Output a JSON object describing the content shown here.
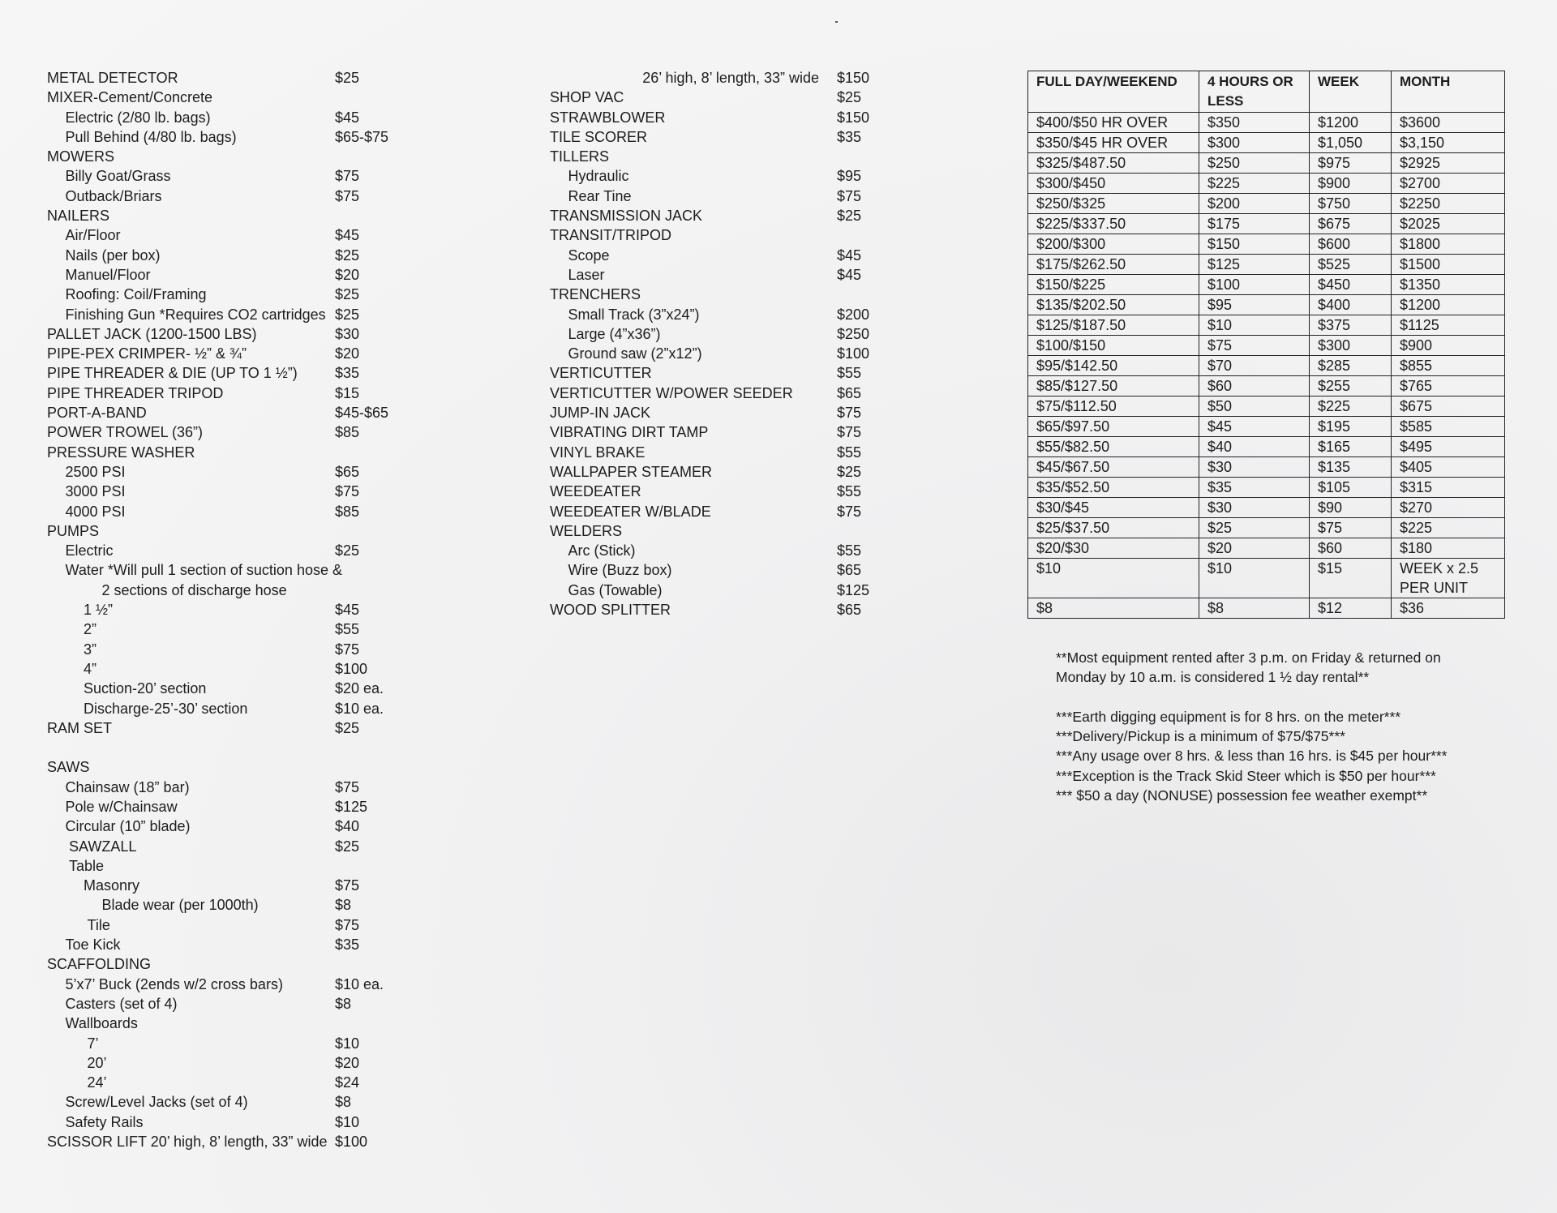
{
  "left_column": [
    {
      "name": "METAL DETECTOR",
      "price": "$25",
      "level": 0
    },
    {
      "name": "MIXER-Cement/Concrete",
      "price": "",
      "level": 0
    },
    {
      "name": "Electric (2/80 lb. bags)",
      "price": "$45",
      "level": 1
    },
    {
      "name": "Pull Behind (4/80 lb. bags)",
      "price": "$65-$75",
      "level": 1
    },
    {
      "name": "MOWERS",
      "price": "",
      "level": 0
    },
    {
      "name": "Billy Goat/Grass",
      "price": "$75",
      "level": 1
    },
    {
      "name": "Outback/Briars",
      "price": "$75",
      "level": 1
    },
    {
      "name": "NAILERS",
      "price": "",
      "level": 0
    },
    {
      "name": "Air/Floor",
      "price": "$45",
      "level": 1
    },
    {
      "name": "Nails (per box)",
      "price": "$25",
      "level": 1
    },
    {
      "name": "Manuel/Floor",
      "price": "$20",
      "level": 1
    },
    {
      "name": "Roofing: Coil/Framing",
      "price": "$25",
      "level": 1
    },
    {
      "name": "Finishing Gun *Requires CO2 cartridges",
      "price": "$25",
      "level": 1
    },
    {
      "name": "PALLET JACK (1200-1500 LBS)",
      "price": "$30",
      "level": 0
    },
    {
      "name": "PIPE-PEX CRIMPER- ½” & ¾”",
      "price": "$20",
      "level": 0
    },
    {
      "name": "PIPE THREADER & DIE (UP TO 1 ½”)",
      "price": "$35",
      "level": 0
    },
    {
      "name": "PIPE THREADER TRIPOD",
      "price": "$15",
      "level": 0
    },
    {
      "name": "PORT-A-BAND",
      "price": "$45-$65",
      "level": 0
    },
    {
      "name": "POWER TROWEL (36”)",
      "price": "$85",
      "level": 0
    },
    {
      "name": "PRESSURE WASHER",
      "price": "",
      "level": 0
    },
    {
      "name": "2500 PSI",
      "price": "$65",
      "level": 1
    },
    {
      "name": "3000 PSI",
      "price": "$75",
      "level": 1
    },
    {
      "name": "4000 PSI",
      "price": "$85",
      "level": 1
    },
    {
      "name": "PUMPS",
      "price": "",
      "level": 0
    },
    {
      "name": "Electric",
      "price": "$25",
      "level": 1
    },
    {
      "name": "Water *Will pull 1 section of suction hose &",
      "price": "",
      "level": 1
    },
    {
      "name": "2 sections of discharge hose",
      "price": "",
      "level": 3
    },
    {
      "name": "1 ½”",
      "price": "$45",
      "level": 2
    },
    {
      "name": "2”",
      "price": "$55",
      "level": 2
    },
    {
      "name": "3”",
      "price": "$75",
      "level": 2
    },
    {
      "name": "4”",
      "price": "$100",
      "level": 2
    },
    {
      "name": "Suction-20’ section",
      "price": "$20 ea.",
      "level": 2
    },
    {
      "name": "Discharge-25’-30’ section",
      "price": "$10 ea.",
      "level": 2
    },
    {
      "name": "RAM SET",
      "price": "$25",
      "level": 0
    },
    {
      "name": "",
      "price": "",
      "level": 0
    },
    {
      "name": "SAWS",
      "price": "",
      "level": 0
    },
    {
      "name": "Chainsaw (18” bar)",
      "price": "$75",
      "level": 1
    },
    {
      "name": "Pole w/Chainsaw",
      "price": "$125",
      "level": 1
    },
    {
      "name": "Circular (10” blade)",
      "price": "$40",
      "level": 1
    },
    {
      "name": "SAWZALL",
      "price": "$25",
      "level": 1.2
    },
    {
      "name": "Table",
      "price": "",
      "level": 1.2
    },
    {
      "name": "Masonry",
      "price": "$75",
      "level": 2
    },
    {
      "name": "Blade wear (per 1000th)",
      "price": "$8",
      "level": 3
    },
    {
      "name": "Tile",
      "price": "$75",
      "level": 2.2
    },
    {
      "name": "Toe Kick",
      "price": "$35",
      "level": 1
    },
    {
      "name": "SCAFFOLDING",
      "price": "",
      "level": 0
    },
    {
      "name": "5’x7’ Buck (2ends w/2 cross bars)",
      "price": "$10 ea.",
      "level": 1
    },
    {
      "name": "Casters  (set of 4)",
      "price": "$8",
      "level": 1
    },
    {
      "name": "Wallboards",
      "price": "",
      "level": 1
    },
    {
      "name": "7’",
      "price": "$10",
      "level": 2.2
    },
    {
      "name": "20’",
      "price": "$20",
      "level": 2.2
    },
    {
      "name": "24’",
      "price": "$24",
      "level": 2.2
    },
    {
      "name": "Screw/Level Jacks (set of 4)",
      "price": "$8",
      "level": 1
    },
    {
      "name": "Safety Rails",
      "price": "$10",
      "level": 1
    },
    {
      "name": "SCISSOR LIFT 20’ high, 8’ length, 33” wide",
      "price": "$100",
      "level": 0
    }
  ],
  "middle_column": [
    {
      "name": "26’ high, 8’ length, 33” wide",
      "price": "$150",
      "level": -1
    },
    {
      "name": "SHOP VAC",
      "price": "$25",
      "level": 0
    },
    {
      "name": "STRAWBLOWER",
      "price": "$150",
      "level": 0
    },
    {
      "name": "TILE SCORER",
      "price": "$35",
      "level": 0
    },
    {
      "name": "TILLERS",
      "price": "",
      "level": 0
    },
    {
      "name": "Hydraulic",
      "price": "$95",
      "level": 1
    },
    {
      "name": "Rear Tine",
      "price": "$75",
      "level": 1
    },
    {
      "name": "TRANSMISSION JACK",
      "price": "$25",
      "level": 0
    },
    {
      "name": "TRANSIT/TRIPOD",
      "price": "",
      "level": 0
    },
    {
      "name": "Scope",
      "price": "$45",
      "level": 1
    },
    {
      "name": "Laser",
      "price": "$45",
      "level": 1
    },
    {
      "name": "TRENCHERS",
      "price": "",
      "level": 0
    },
    {
      "name": "Small Track (3”x24”)",
      "price": "$200",
      "level": 1
    },
    {
      "name": "Large (4”x36”)",
      "price": "$250",
      "level": 1
    },
    {
      "name": "Ground saw (2”x12”)",
      "price": "$100",
      "level": 1
    },
    {
      "name": "VERTICUTTER",
      "price": "$55",
      "level": 0
    },
    {
      "name": "VERTICUTTER W/POWER SEEDER",
      "price": "$65",
      "level": 0
    },
    {
      "name": "JUMP-IN JACK",
      "price": "$75",
      "level": 0
    },
    {
      "name": "VIBRATING DIRT TAMP",
      "price": "$75",
      "level": 0
    },
    {
      "name": "VINYL BRAKE",
      "price": "$55",
      "level": 0
    },
    {
      "name": "WALLPAPER STEAMER",
      "price": "$25",
      "level": 0
    },
    {
      "name": "WEEDEATER",
      "price": "$55",
      "level": 0
    },
    {
      "name": "WEEDEATER W/BLADE",
      "price": "$75",
      "level": 0
    },
    {
      "name": "WELDERS",
      "price": "",
      "level": 0
    },
    {
      "name": "Arc (Stick)",
      "price": "$55",
      "level": 1
    },
    {
      "name": "Wire (Buzz box)",
      "price": "$65",
      "level": 1
    },
    {
      "name": "Gas (Towable)",
      "price": "$125",
      "level": 1
    },
    {
      "name": "WOOD SPLITTER",
      "price": "$65",
      "level": 0
    }
  ],
  "rate_table": {
    "headers": [
      "FULL DAY/WEEKEND",
      "4 HOURS OR LESS",
      "WEEK",
      "MONTH"
    ],
    "rows": [
      [
        "$400/$50 HR OVER",
        "$350",
        "$1200",
        "$3600"
      ],
      [
        "$350/$45 HR OVER",
        "$300",
        "$1,050",
        "$3,150"
      ],
      [
        "$325/$487.50",
        "$250",
        "$975",
        "$2925"
      ],
      [
        "$300/$450",
        "$225",
        "$900",
        "$2700"
      ],
      [
        "$250/$325",
        "$200",
        "$750",
        "$2250"
      ],
      [
        "$225/$337.50",
        "$175",
        "$675",
        "$2025"
      ],
      [
        "$200/$300",
        "$150",
        "$600",
        "$1800"
      ],
      [
        "$175/$262.50",
        "$125",
        "$525",
        "$1500"
      ],
      [
        "$150/$225",
        "$100",
        "$450",
        "$1350"
      ],
      [
        "$135/$202.50",
        "$95",
        "$400",
        "$1200"
      ],
      [
        "$125/$187.50",
        "$10",
        "$375",
        "$1125"
      ],
      [
        "$100/$150",
        "$75",
        "$300",
        "$900"
      ],
      [
        "$95/$142.50",
        "$70",
        "$285",
        "$855"
      ],
      [
        "$85/$127.50",
        "$60",
        "$255",
        "$765"
      ],
      [
        "$75/$112.50",
        "$50",
        "$225",
        "$675"
      ],
      [
        "$65/$97.50",
        "$45",
        "$195",
        "$585"
      ],
      [
        "$55/$82.50",
        "$40",
        "$165",
        "$495"
      ],
      [
        "$45/$67.50",
        "$30",
        "$135",
        "$405"
      ],
      [
        "$35/$52.50",
        "$35",
        "$105",
        "$315"
      ],
      [
        "$30/$45",
        "$30",
        "$90",
        "$270"
      ],
      [
        "$25/$37.50",
        "$25",
        "$75",
        "$225"
      ],
      [
        "$20/$30",
        "$20",
        "$60",
        "$180"
      ],
      [
        "$10",
        "$10",
        "$15",
        "WEEK x 2.5 PER UNIT"
      ],
      [
        "$8",
        "$8",
        "$12",
        "$36"
      ]
    ]
  },
  "notes": [
    "**Most equipment rented after 3 p.m. on Friday & returned on",
    "Monday by 10 a.m. is considered 1 ½ day rental**",
    "",
    "***Earth digging equipment is for 8 hrs. on the meter***",
    "***Delivery/Pickup is a minimum of $75/$75***",
    "***Any usage over 8 hrs. & less than 16 hrs. is $45 per hour***",
    "***Exception is the Track Skid Steer which is $50 per hour***",
    "*** $50 a day (NONUSE) possession fee weather exempt**"
  ]
}
